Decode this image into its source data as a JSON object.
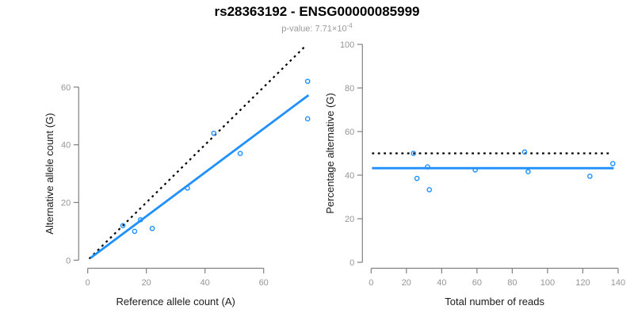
{
  "header": {
    "title": "rs28363192 - ENSG00000085999",
    "subtitle_prefix": "p-value: 7.71×10",
    "subtitle_exponent": "-4"
  },
  "colors": {
    "accent": "#1E90FF",
    "black_line": "#000000",
    "axis": "#808080",
    "tick_label": "#969696",
    "axis_title": "#1a1a1a",
    "subtitle": "#999999"
  },
  "chart_data": [
    {
      "type": "scatter",
      "name": "allele-counts-plot",
      "xlabel": "Reference allele count (A)",
      "ylabel": "Alternative allele count (G)",
      "xlim": [
        0,
        78
      ],
      "ylim": [
        0,
        66
      ],
      "x_ticks": [
        0,
        20,
        40,
        60
      ],
      "y_ticks": [
        0,
        20,
        40,
        60
      ],
      "grid": false,
      "legend": null,
      "points": [
        [
          12,
          12
        ],
        [
          16,
          10
        ],
        [
          18,
          14
        ],
        [
          22,
          11
        ],
        [
          34,
          25
        ],
        [
          43,
          44
        ],
        [
          52,
          37
        ],
        [
          75,
          49
        ],
        [
          75,
          62
        ]
      ],
      "lines": [
        {
          "name": "identity-line",
          "x1": 0.5,
          "y1": 0.5,
          "x2": 74,
          "y2": 74,
          "style": "dotted",
          "color": "black_line"
        },
        {
          "name": "fit-line",
          "x1": 1,
          "y1": 0.8,
          "x2": 75.3,
          "y2": 57.2,
          "style": "solid",
          "color": "accent"
        }
      ]
    },
    {
      "type": "scatter",
      "name": "percentage-reads-plot",
      "xlabel": "Total number of reads",
      "ylabel": "Percentage alternative (G)",
      "xlim": [
        0,
        140
      ],
      "ylim": [
        0,
        100
      ],
      "x_ticks": [
        0,
        20,
        40,
        60,
        80,
        100,
        120,
        140
      ],
      "y_ticks": [
        0,
        20,
        40,
        60,
        80,
        100
      ],
      "grid": false,
      "legend": null,
      "points": [
        [
          24,
          50
        ],
        [
          26,
          38.5
        ],
        [
          32,
          43.8
        ],
        [
          33,
          33.3
        ],
        [
          59,
          42.4
        ],
        [
          87,
          50.6
        ],
        [
          89,
          41.6
        ],
        [
          124,
          39.5
        ],
        [
          137,
          45.3
        ]
      ],
      "lines": [
        {
          "name": "expected-50pct-line",
          "x1": 0.5,
          "y1": 50,
          "x2": 135,
          "y2": 50,
          "style": "dotted",
          "color": "black_line"
        },
        {
          "name": "mean-pct-line",
          "x1": 0.5,
          "y1": 43.2,
          "x2": 137.5,
          "y2": 43.2,
          "style": "solid",
          "color": "accent"
        }
      ]
    }
  ]
}
